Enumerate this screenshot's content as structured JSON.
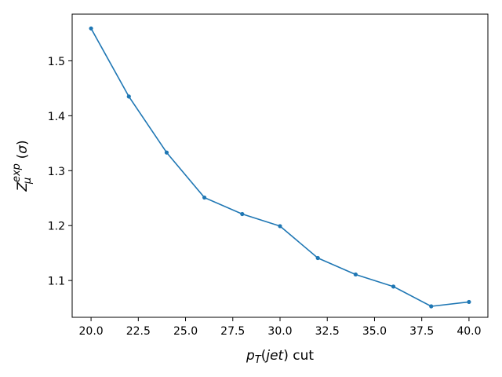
{
  "chart_data": {
    "type": "line",
    "title": "",
    "xlabel_parts": {
      "var": "p",
      "sub": "T",
      "arg": "jet",
      "suffix": " cut"
    },
    "ylabel_parts": {
      "var": "Z",
      "sub": "μ",
      "sup": "exp",
      "unit": "σ"
    },
    "x": [
      20,
      22,
      24,
      26,
      28,
      30,
      32,
      34,
      36,
      38,
      40
    ],
    "series": [
      {
        "values": [
          1.559,
          1.435,
          1.333,
          1.251,
          1.221,
          1.199,
          1.141,
          1.111,
          1.089,
          1.053,
          1.061
        ],
        "color": "#1f77b4"
      }
    ],
    "xlim": [
      19.0,
      41.0
    ],
    "ylim": [
      1.033,
      1.585
    ],
    "xticks": [
      20.0,
      22.5,
      25.0,
      27.5,
      30.0,
      32.5,
      35.0,
      37.5,
      40.0
    ],
    "xtick_labels": [
      "20.0",
      "22.5",
      "25.0",
      "27.5",
      "30.0",
      "32.5",
      "35.0",
      "37.5",
      "40.0"
    ],
    "yticks": [
      1.1,
      1.2,
      1.3,
      1.4,
      1.5
    ],
    "ytick_labels": [
      "1.1",
      "1.2",
      "1.3",
      "1.4",
      "1.5"
    ],
    "grid": false,
    "legend": "none",
    "marker": "circle"
  }
}
